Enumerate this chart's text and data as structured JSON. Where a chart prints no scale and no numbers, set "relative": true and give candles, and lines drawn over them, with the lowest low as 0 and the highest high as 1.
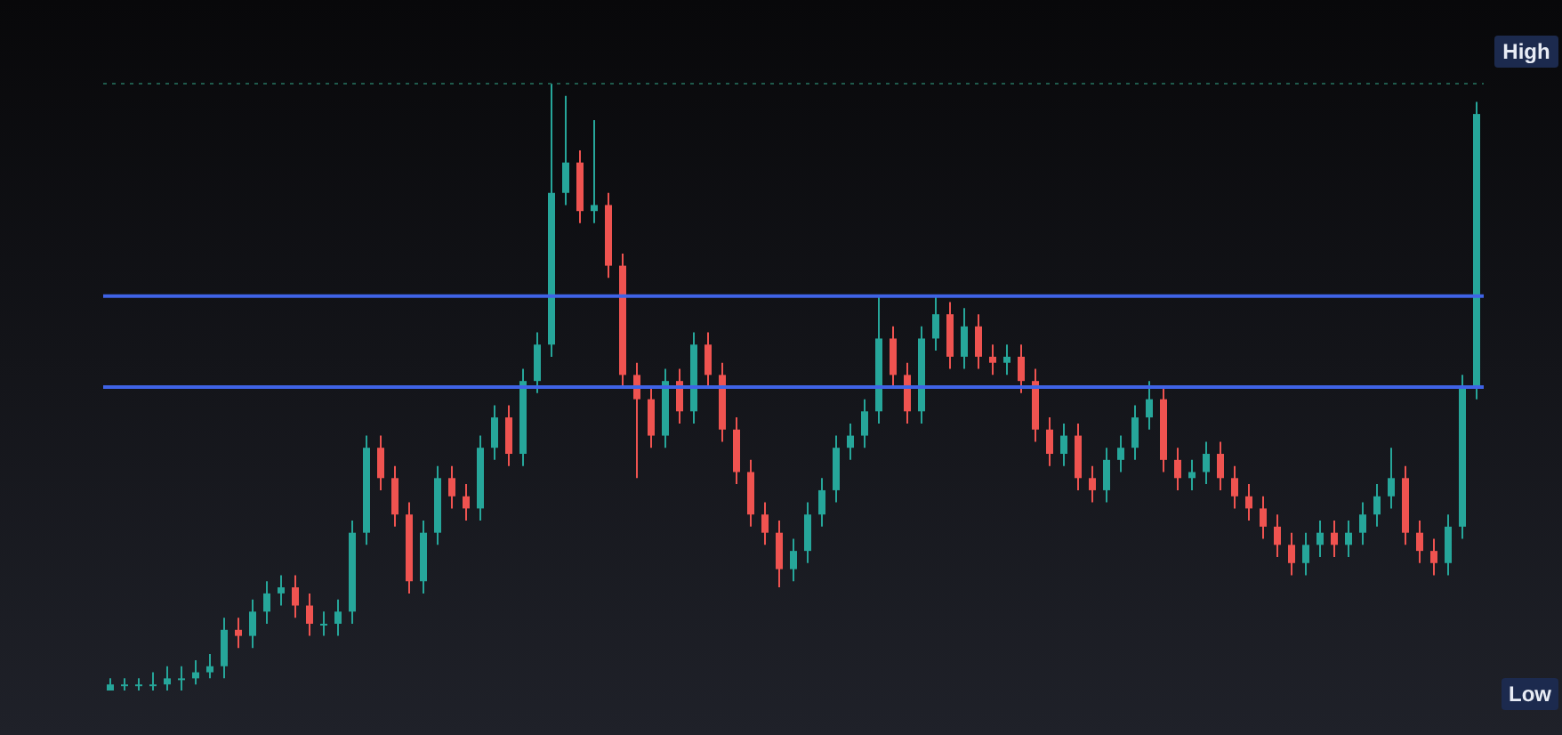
{
  "chart_data": {
    "type": "candlestick",
    "relative": true,
    "tick_labels": false,
    "grid": false,
    "legend": false,
    "categories": [
      null,
      null,
      null,
      null,
      null,
      null,
      null,
      null,
      null,
      null,
      null,
      null,
      null,
      null,
      null,
      null,
      null,
      null,
      null,
      null,
      null,
      null,
      null,
      null,
      null,
      null,
      null,
      null,
      null,
      null,
      null,
      null,
      null,
      null,
      null,
      null,
      null,
      null,
      null,
      null,
      null,
      null,
      null,
      null,
      null,
      null,
      null,
      null,
      null,
      null,
      null,
      null,
      null,
      null,
      null,
      null,
      null,
      null,
      null,
      null,
      null,
      null,
      null,
      null,
      null,
      null,
      null,
      null,
      null,
      null,
      null,
      null,
      null,
      null,
      null,
      null,
      null,
      null,
      null,
      null,
      null,
      null,
      null,
      null,
      null,
      null,
      null,
      null,
      null,
      null,
      null,
      null,
      null,
      null,
      null,
      null,
      null
    ],
    "ohlc": [
      [
        0,
        0.02,
        0,
        0.01
      ],
      [
        0.01,
        0.02,
        0,
        0.01
      ],
      [
        0.01,
        0.02,
        0,
        0.01
      ],
      [
        0.01,
        0.03,
        0,
        0.01
      ],
      [
        0.01,
        0.04,
        0,
        0.02
      ],
      [
        0.02,
        0.04,
        0,
        0.02
      ],
      [
        0.02,
        0.05,
        0.01,
        0.03
      ],
      [
        0.03,
        0.06,
        0.02,
        0.04
      ],
      [
        0.04,
        0.12,
        0.02,
        0.1
      ],
      [
        0.1,
        0.12,
        0.07,
        0.09
      ],
      [
        0.09,
        0.15,
        0.07,
        0.13
      ],
      [
        0.13,
        0.18,
        0.11,
        0.16
      ],
      [
        0.16,
        0.19,
        0.14,
        0.17
      ],
      [
        0.17,
        0.19,
        0.12,
        0.14
      ],
      [
        0.14,
        0.16,
        0.09,
        0.11
      ],
      [
        0.11,
        0.13,
        0.09,
        0.11
      ],
      [
        0.11,
        0.15,
        0.09,
        0.13
      ],
      [
        0.13,
        0.28,
        0.11,
        0.26
      ],
      [
        0.26,
        0.42,
        0.24,
        0.4
      ],
      [
        0.4,
        0.42,
        0.33,
        0.35
      ],
      [
        0.35,
        0.37,
        0.27,
        0.29
      ],
      [
        0.29,
        0.31,
        0.16,
        0.18
      ],
      [
        0.18,
        0.28,
        0.16,
        0.26
      ],
      [
        0.26,
        0.37,
        0.24,
        0.35
      ],
      [
        0.35,
        0.37,
        0.3,
        0.32
      ],
      [
        0.32,
        0.34,
        0.28,
        0.3
      ],
      [
        0.3,
        0.42,
        0.28,
        0.4
      ],
      [
        0.4,
        0.47,
        0.38,
        0.45
      ],
      [
        0.45,
        0.47,
        0.37,
        0.39
      ],
      [
        0.39,
        0.53,
        0.37,
        0.51
      ],
      [
        0.51,
        0.59,
        0.49,
        0.57
      ],
      [
        0.57,
        1,
        0.55,
        0.82
      ],
      [
        0.82,
        0.98,
        0.8,
        0.87
      ],
      [
        0.87,
        0.89,
        0.77,
        0.79
      ],
      [
        0.79,
        0.94,
        0.77,
        0.8
      ],
      [
        0.8,
        0.82,
        0.68,
        0.7
      ],
      [
        0.7,
        0.72,
        0.5,
        0.52
      ],
      [
        0.52,
        0.54,
        0.35,
        0.48
      ],
      [
        0.48,
        0.5,
        0.4,
        0.42
      ],
      [
        0.42,
        0.53,
        0.4,
        0.51
      ],
      [
        0.51,
        0.53,
        0.44,
        0.46
      ],
      [
        0.46,
        0.59,
        0.44,
        0.57
      ],
      [
        0.57,
        0.59,
        0.5,
        0.52
      ],
      [
        0.52,
        0.54,
        0.41,
        0.43
      ],
      [
        0.43,
        0.45,
        0.34,
        0.36
      ],
      [
        0.36,
        0.38,
        0.27,
        0.29
      ],
      [
        0.29,
        0.31,
        0.24,
        0.26
      ],
      [
        0.26,
        0.28,
        0.17,
        0.2
      ],
      [
        0.2,
        0.25,
        0.18,
        0.23
      ],
      [
        0.23,
        0.31,
        0.21,
        0.29
      ],
      [
        0.29,
        0.35,
        0.27,
        0.33
      ],
      [
        0.33,
        0.42,
        0.31,
        0.4
      ],
      [
        0.4,
        0.44,
        0.38,
        0.42
      ],
      [
        0.42,
        0.48,
        0.4,
        0.46
      ],
      [
        0.46,
        0.65,
        0.44,
        0.58
      ],
      [
        0.58,
        0.6,
        0.5,
        0.52
      ],
      [
        0.52,
        0.54,
        0.44,
        0.46
      ],
      [
        0.46,
        0.6,
        0.44,
        0.58
      ],
      [
        0.58,
        0.65,
        0.56,
        0.62
      ],
      [
        0.62,
        0.64,
        0.53,
        0.55
      ],
      [
        0.55,
        0.63,
        0.53,
        0.6
      ],
      [
        0.6,
        0.62,
        0.53,
        0.55
      ],
      [
        0.55,
        0.57,
        0.52,
        0.54
      ],
      [
        0.54,
        0.57,
        0.52,
        0.55
      ],
      [
        0.55,
        0.57,
        0.49,
        0.51
      ],
      [
        0.51,
        0.53,
        0.41,
        0.43
      ],
      [
        0.43,
        0.45,
        0.37,
        0.39
      ],
      [
        0.39,
        0.44,
        0.37,
        0.42
      ],
      [
        0.42,
        0.44,
        0.33,
        0.35
      ],
      [
        0.35,
        0.37,
        0.31,
        0.33
      ],
      [
        0.33,
        0.4,
        0.31,
        0.38
      ],
      [
        0.38,
        0.42,
        0.36,
        0.4
      ],
      [
        0.4,
        0.47,
        0.38,
        0.45
      ],
      [
        0.45,
        0.51,
        0.43,
        0.48
      ],
      [
        0.48,
        0.5,
        0.36,
        0.38
      ],
      [
        0.38,
        0.4,
        0.33,
        0.35
      ],
      [
        0.35,
        0.38,
        0.33,
        0.36
      ],
      [
        0.36,
        0.41,
        0.34,
        0.39
      ],
      [
        0.39,
        0.41,
        0.33,
        0.35
      ],
      [
        0.35,
        0.37,
        0.3,
        0.32
      ],
      [
        0.32,
        0.34,
        0.28,
        0.3
      ],
      [
        0.3,
        0.32,
        0.25,
        0.27
      ],
      [
        0.27,
        0.29,
        0.22,
        0.24
      ],
      [
        0.24,
        0.26,
        0.19,
        0.21
      ],
      [
        0.21,
        0.26,
        0.19,
        0.24
      ],
      [
        0.24,
        0.28,
        0.22,
        0.26
      ],
      [
        0.26,
        0.28,
        0.22,
        0.24
      ],
      [
        0.24,
        0.28,
        0.22,
        0.26
      ],
      [
        0.26,
        0.31,
        0.24,
        0.29
      ],
      [
        0.29,
        0.34,
        0.27,
        0.32
      ],
      [
        0.32,
        0.4,
        0.3,
        0.35
      ],
      [
        0.35,
        0.37,
        0.24,
        0.26
      ],
      [
        0.26,
        0.28,
        0.21,
        0.23
      ],
      [
        0.23,
        0.25,
        0.19,
        0.21
      ],
      [
        0.21,
        0.29,
        0.19,
        0.27
      ],
      [
        0.27,
        0.52,
        0.25,
        0.5
      ],
      [
        0.5,
        0.97,
        0.48,
        0.95
      ]
    ],
    "colors": [
      "#26a69a",
      "#26a69a",
      "#26a69a",
      "#26a69a",
      "#26a69a",
      "#26a69a",
      "#26a69a",
      "#26a69a",
      "#26a69a",
      "#ef5350",
      "#26a69a",
      "#26a69a",
      "#26a69a",
      "#ef5350",
      "#ef5350",
      "#26a69a",
      "#26a69a",
      "#26a69a",
      "#26a69a",
      "#ef5350",
      "#ef5350",
      "#ef5350",
      "#26a69a",
      "#26a69a",
      "#ef5350",
      "#ef5350",
      "#26a69a",
      "#26a69a",
      "#ef5350",
      "#26a69a",
      "#26a69a",
      "#26a69a",
      "#26a69a",
      "#ef5350",
      "#26a69a",
      "#ef5350",
      "#ef5350",
      "#ef5350",
      "#ef5350",
      "#26a69a",
      "#ef5350",
      "#26a69a",
      "#ef5350",
      "#ef5350",
      "#ef5350",
      "#ef5350",
      "#ef5350",
      "#ef5350",
      "#26a69a",
      "#26a69a",
      "#26a69a",
      "#26a69a",
      "#26a69a",
      "#26a69a",
      "#26a69a",
      "#ef5350",
      "#ef5350",
      "#26a69a",
      "#26a69a",
      "#ef5350",
      "#26a69a",
      "#ef5350",
      "#ef5350",
      "#26a69a",
      "#ef5350",
      "#ef5350",
      "#ef5350",
      "#26a69a",
      "#ef5350",
      "#ef5350",
      "#26a69a",
      "#26a69a",
      "#26a69a",
      "#26a69a",
      "#ef5350",
      "#ef5350",
      "#26a69a",
      "#26a69a",
      "#ef5350",
      "#ef5350",
      "#ef5350",
      "#ef5350",
      "#ef5350",
      "#ef5350",
      "#26a69a",
      "#26a69a",
      "#ef5350",
      "#26a69a",
      "#26a69a",
      "#26a69a",
      "#26a69a",
      "#ef5350",
      "#ef5350",
      "#ef5350",
      "#26a69a",
      "#26a69a",
      "#26a69a"
    ],
    "ref_lines": [
      {
        "axis": "y",
        "value": 0.65,
        "color": "#3f63e6",
        "line_style": "solid"
      },
      {
        "axis": "y",
        "value": 0.5,
        "color": "#3f63e6",
        "line_style": "solid"
      },
      {
        "axis": "y",
        "value": 1,
        "color": "#1f5a4c",
        "line_style": "dotted",
        "label": "High"
      }
    ],
    "annotations": [
      "Low"
    ]
  }
}
